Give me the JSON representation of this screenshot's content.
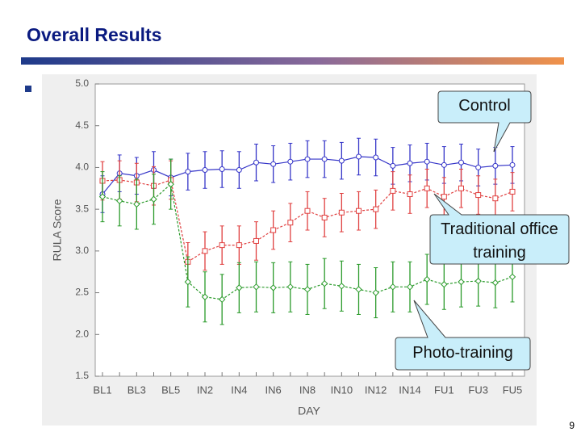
{
  "slide": {
    "title": "Overall Results",
    "page_number": "9"
  },
  "chart_data": {
    "type": "line",
    "x_label": "DAY",
    "y_label": "RULA Score",
    "categories": [
      "BL1",
      null,
      "BL3",
      null,
      "BL5",
      null,
      "IN2",
      null,
      "IN4",
      null,
      "IN6",
      null,
      "IN8",
      null,
      "IN10",
      null,
      "IN12",
      null,
      "IN14",
      null,
      "FU1",
      null,
      "FU3",
      null,
      "FU5"
    ],
    "ylim": [
      1.5,
      5.0
    ],
    "yticks": [
      {
        "value": 1.5,
        "label": "1.5"
      },
      {
        "value": 2.0,
        "label": "2.0"
      },
      {
        "value": 2.5,
        "label": "2.5"
      },
      {
        "value": 3.0,
        "label": "3.0"
      },
      {
        "value": 3.5,
        "label": "3.5"
      },
      {
        "value": 4.0,
        "label": "4.0"
      },
      {
        "value": 4.5,
        "label": "4.5"
      },
      {
        "value": 5.0,
        "label": "5.0"
      }
    ],
    "series": [
      {
        "name": "Control",
        "color": "#3535c8",
        "marker": "circle",
        "dashed": false,
        "values": [
          3.68,
          3.93,
          3.9,
          3.97,
          3.88,
          3.95,
          3.97,
          3.98,
          3.97,
          4.06,
          4.04,
          4.07,
          4.1,
          4.1,
          4.08,
          4.13,
          4.12,
          4.02,
          4.05,
          4.07,
          4.03,
          4.06,
          4.0,
          4.02,
          4.03
        ],
        "errors": [
          0.22,
          0.22,
          0.22,
          0.22,
          0.22,
          0.22,
          0.22,
          0.22,
          0.22,
          0.22,
          0.22,
          0.22,
          0.22,
          0.22,
          0.22,
          0.22,
          0.22,
          0.22,
          0.22,
          0.22,
          0.22,
          0.22,
          0.22,
          0.22,
          0.22
        ]
      },
      {
        "name": "Traditional office training",
        "color": "#e04040",
        "marker": "square",
        "dashed": true,
        "values": [
          3.84,
          3.85,
          3.82,
          3.78,
          3.85,
          2.87,
          3.0,
          3.07,
          3.07,
          3.12,
          3.25,
          3.34,
          3.48,
          3.4,
          3.46,
          3.48,
          3.5,
          3.72,
          3.68,
          3.75,
          3.65,
          3.75,
          3.67,
          3.63,
          3.71
        ],
        "errors": [
          0.23,
          0.23,
          0.23,
          0.23,
          0.23,
          0.23,
          0.23,
          0.23,
          0.23,
          0.23,
          0.23,
          0.23,
          0.23,
          0.23,
          0.23,
          0.23,
          0.23,
          0.23,
          0.23,
          0.23,
          0.23,
          0.23,
          0.23,
          0.23,
          0.23
        ]
      },
      {
        "name": "Photo-training",
        "color": "#2a9a2a",
        "marker": "diamond",
        "dashed": true,
        "values": [
          3.65,
          3.6,
          3.56,
          3.62,
          3.8,
          2.63,
          2.45,
          2.42,
          2.56,
          2.57,
          2.56,
          2.57,
          2.54,
          2.61,
          2.58,
          2.54,
          2.5,
          2.57,
          2.57,
          2.66,
          2.6,
          2.63,
          2.64,
          2.62,
          2.69
        ],
        "errors": [
          0.3,
          0.3,
          0.3,
          0.3,
          0.3,
          0.3,
          0.3,
          0.3,
          0.3,
          0.3,
          0.3,
          0.3,
          0.3,
          0.3,
          0.3,
          0.3,
          0.3,
          0.3,
          0.3,
          0.3,
          0.3,
          0.3,
          0.3,
          0.3,
          0.3
        ]
      }
    ]
  }
}
